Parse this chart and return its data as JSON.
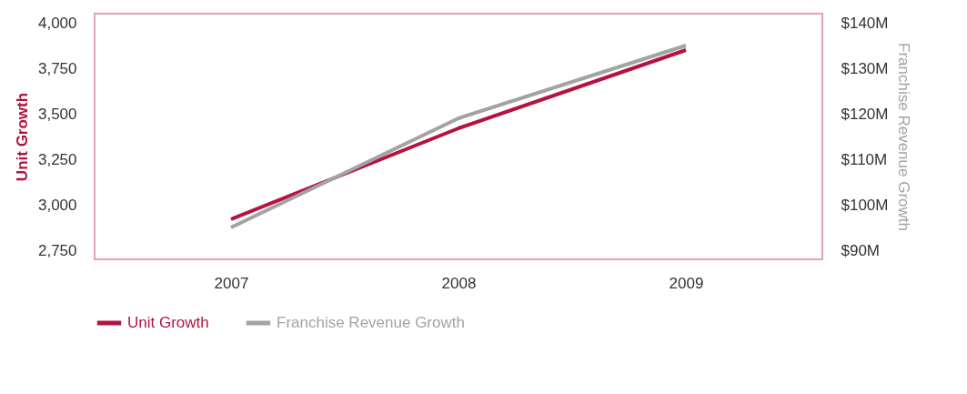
{
  "chart_data": {
    "type": "line",
    "ylabel": "Unit Growth",
    "y2label": "Franchise Revenue Growth",
    "categories": [
      "2007",
      "2008",
      "2009"
    ],
    "series": [
      {
        "name": "Unit Growth",
        "color": "#b5123f",
        "values": [
          2920,
          3420,
          3850
        ]
      },
      {
        "name": "Franchise Revenue Growth",
        "color": "#a3a3a3",
        "values": [
          95,
          119,
          135
        ],
        "axis": "y2"
      }
    ],
    "ylim": [
      2700,
      4050
    ],
    "yticks": [
      {
        "value": 2750,
        "label": "2,750"
      },
      {
        "value": 3000,
        "label": "3,000"
      },
      {
        "value": 3250,
        "label": "3,250"
      },
      {
        "value": 3500,
        "label": "3,500"
      },
      {
        "value": 3750,
        "label": "3,750"
      },
      {
        "value": 4000,
        "label": "4,000"
      }
    ],
    "y2lim": [
      88,
      142
    ],
    "y2ticks": [
      {
        "value": 90,
        "label": "$90M"
      },
      {
        "value": 100,
        "label": "$100M"
      },
      {
        "value": 110,
        "label": "$110M"
      },
      {
        "value": 120,
        "label": "$120M"
      },
      {
        "value": 130,
        "label": "$130M"
      },
      {
        "value": 140,
        "label": "$140M"
      }
    ],
    "grid": false,
    "legend": "bottom left",
    "marker": "none",
    "line_style": "solid"
  }
}
